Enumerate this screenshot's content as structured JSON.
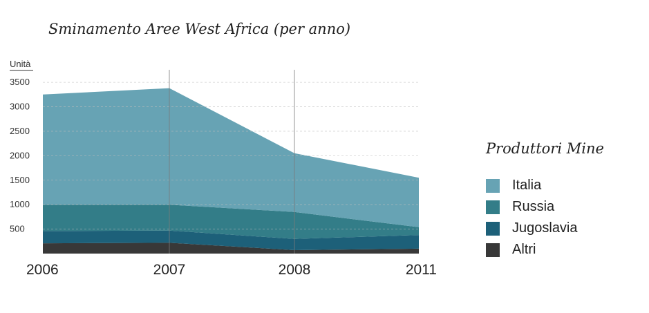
{
  "title": "Sminamento Aree West Africa (per anno)",
  "legend_title": "Produttori Mine",
  "chart_data": {
    "type": "area",
    "stacked": true,
    "ylabel": "Unità",
    "x": [
      "2006",
      "2007",
      "2008",
      "2011"
    ],
    "yticks": [
      500,
      1000,
      1500,
      2000,
      2500,
      3000,
      3500
    ],
    "ylim": [
      0,
      3700
    ],
    "grid": true,
    "legend_placement": "right",
    "series": [
      {
        "name": "Altri",
        "color": "#383838",
        "values": [
          210,
          220,
          70,
          100
        ]
      },
      {
        "name": "Jugoslavia",
        "color": "#1d6079",
        "values": [
          250,
          250,
          230,
          280
        ]
      },
      {
        "name": "Russia",
        "color": "#337d88",
        "values": [
          540,
          530,
          550,
          160
        ]
      },
      {
        "name": "Italia",
        "color": "#67a3b4",
        "values": [
          2250,
          2380,
          1200,
          1010
        ]
      }
    ]
  }
}
